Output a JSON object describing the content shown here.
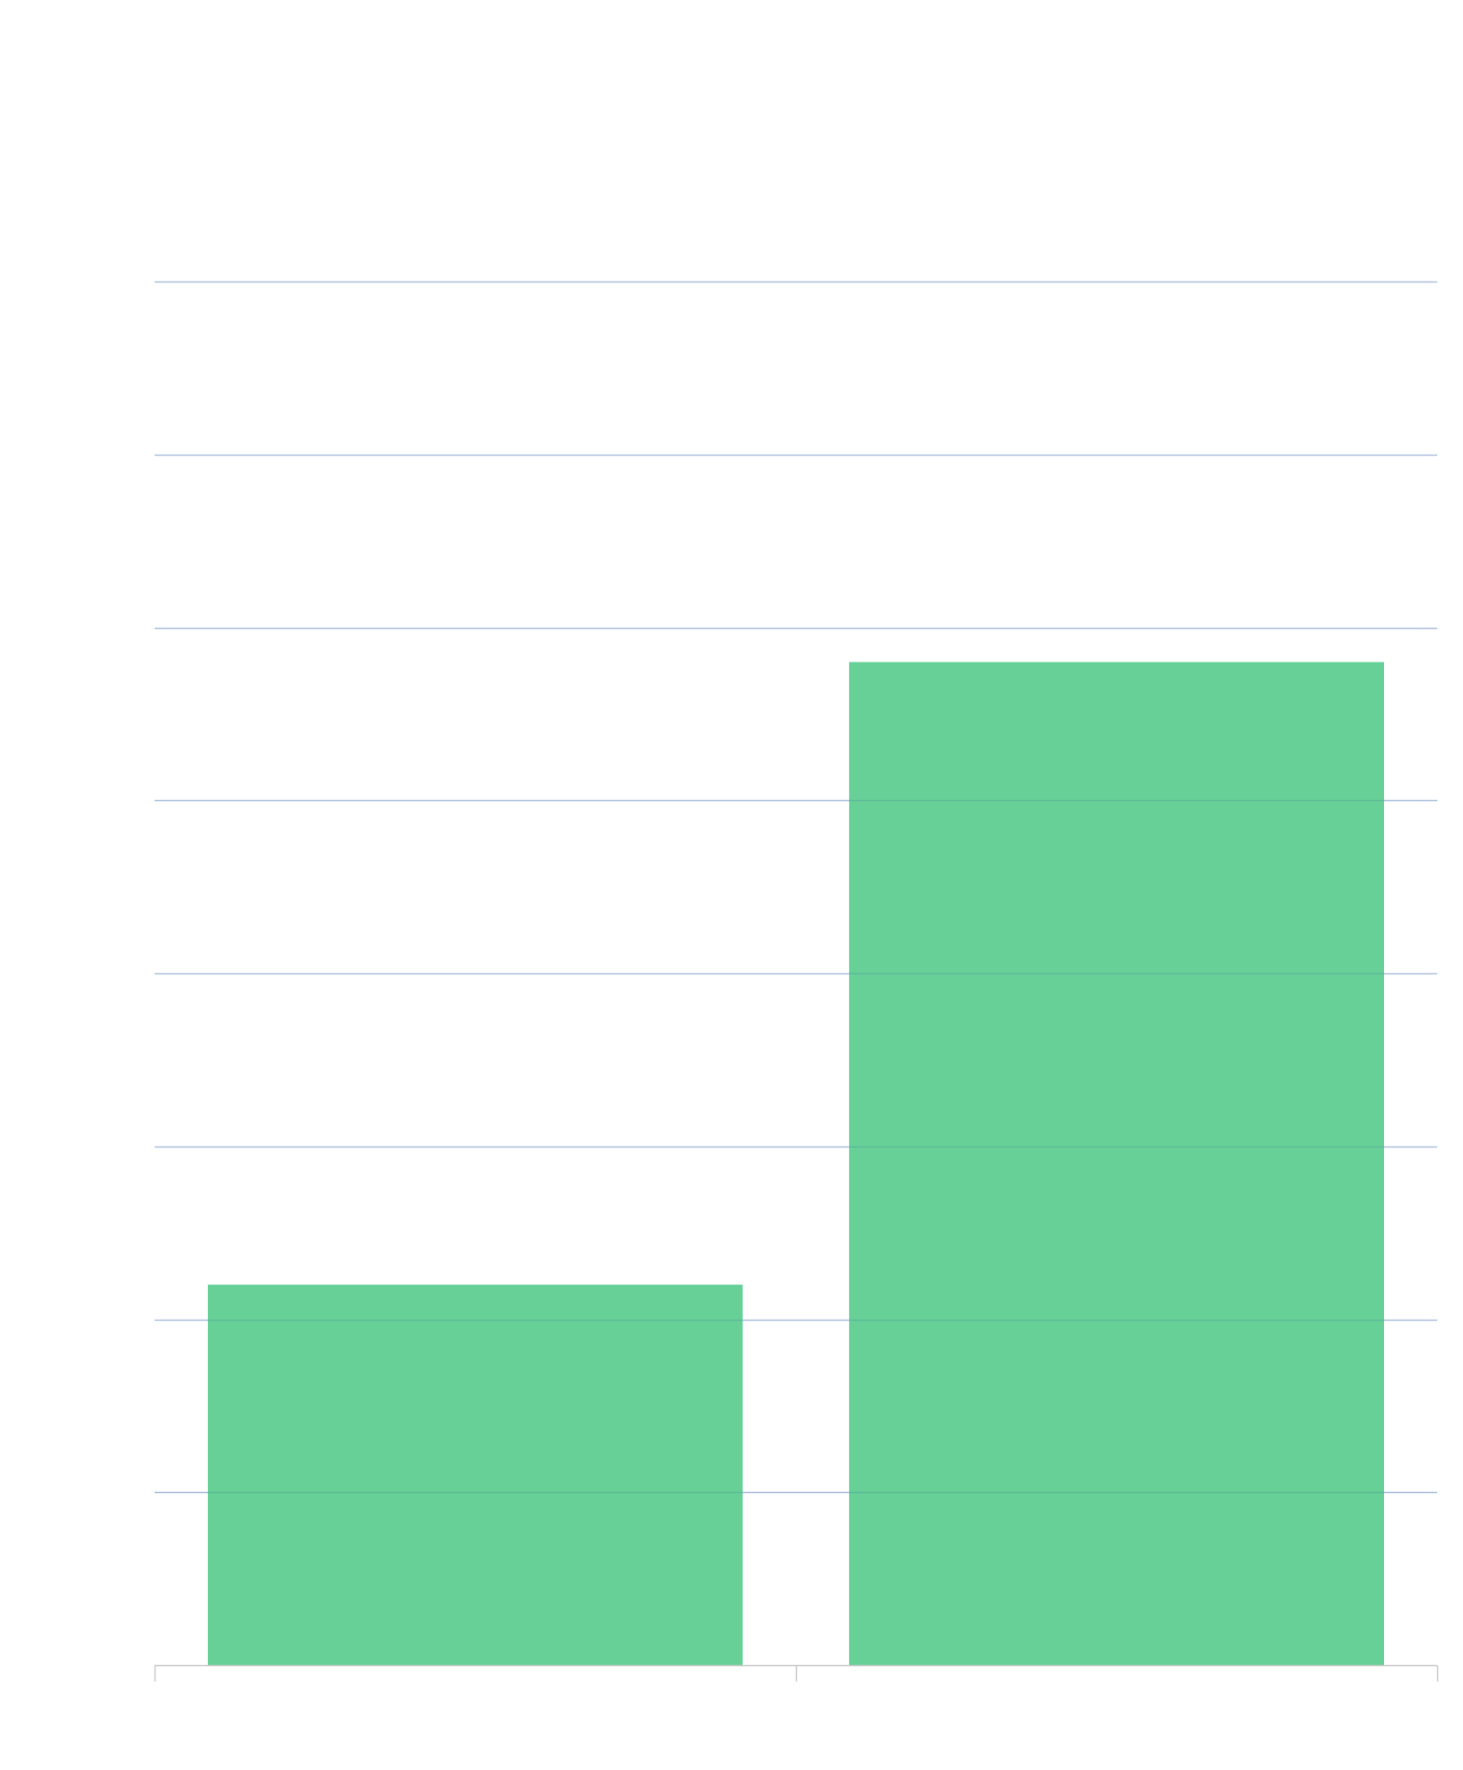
{
  "chart_data": {
    "type": "bar",
    "title": "",
    "xlabel": "",
    "ylabel": "",
    "categories": [
      "",
      ""
    ],
    "values": [
      2.2,
      5.8
    ],
    "ylim": [
      0,
      8
    ],
    "yticks": [
      0,
      1,
      2,
      3,
      4,
      5,
      6,
      7,
      8
    ],
    "grid": true,
    "legend": "none"
  },
  "colors": {
    "bar": "#67d097",
    "grid": "#c9d5ee",
    "axis": "#c8c8c8",
    "background": "#ffffff"
  }
}
